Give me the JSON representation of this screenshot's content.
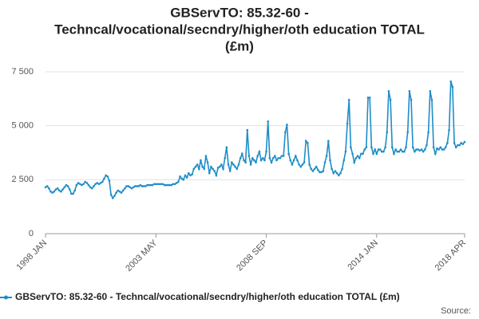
{
  "chart_data": {
    "type": "line",
    "title": [
      "GBServTO: 85.32-60 -",
      "Techncal/vocational/secndry/higher/oth education TOTAL",
      "(£m)"
    ],
    "source": "Source:",
    "categories": [
      "1998 JAN",
      null,
      null,
      null,
      null,
      null,
      null,
      null,
      null,
      null,
      null,
      null,
      null,
      null,
      null,
      null,
      null,
      null,
      null,
      null,
      null,
      null,
      null,
      null,
      null,
      null,
      null,
      null,
      null,
      null,
      null,
      null,
      null,
      null,
      null,
      null,
      null,
      null,
      null,
      null,
      null,
      null,
      null,
      null,
      null,
      null,
      null,
      null,
      null,
      null,
      null,
      null,
      null,
      null,
      null,
      null,
      null,
      null,
      null,
      null,
      null,
      null,
      null,
      null,
      "2003 MAY",
      null,
      null,
      null,
      null,
      null,
      null,
      null,
      null,
      null,
      null,
      null,
      null,
      null,
      null,
      null,
      null,
      null,
      null,
      null,
      null,
      null,
      null,
      null,
      null,
      null,
      null,
      null,
      null,
      null,
      null,
      null,
      null,
      null,
      null,
      null,
      null,
      null,
      null,
      null,
      null,
      null,
      null,
      null,
      null,
      null,
      null,
      null,
      null,
      null,
      null,
      null,
      null,
      null,
      null,
      null,
      null,
      null,
      null,
      null,
      null,
      null,
      null,
      null,
      "2008 SEP",
      null,
      null,
      null,
      null,
      null,
      null,
      null,
      null,
      null,
      null,
      null,
      null,
      null,
      null,
      null,
      null,
      null,
      null,
      null,
      null,
      null,
      null,
      null,
      null,
      null,
      null,
      null,
      null,
      null,
      null,
      null,
      null,
      null,
      null,
      null,
      null,
      null,
      null,
      null,
      null,
      null,
      null,
      null,
      null,
      null,
      null,
      null,
      null,
      null,
      null,
      null,
      null,
      null,
      null,
      null,
      null,
      null,
      null,
      null,
      null,
      null,
      null,
      null,
      "2014 JAN",
      null,
      null,
      null,
      null,
      null,
      null,
      null,
      null,
      null,
      null,
      null,
      null,
      null,
      null,
      null,
      null,
      null,
      null,
      null,
      null,
      null,
      null,
      null,
      null,
      null,
      null,
      null,
      null,
      null,
      null,
      null,
      null,
      null,
      null,
      null,
      null,
      null,
      null,
      null,
      null,
      null,
      null,
      null,
      null,
      null,
      null,
      null,
      null,
      null,
      null,
      "2018 APR"
    ],
    "series": [
      {
        "name": "GBServTO: 85.32-60 - Techncal/vocational/secndry/higher/oth education TOTAL (£m)",
        "color": "#1f8dc8",
        "values": [
          2150,
          2200,
          2100,
          1950,
          1900,
          1950,
          2050,
          2100,
          2000,
          1950,
          2050,
          2150,
          2250,
          2200,
          2050,
          1850,
          1850,
          2000,
          2250,
          2350,
          2300,
          2250,
          2300,
          2400,
          2350,
          2250,
          2150,
          2100,
          2200,
          2300,
          2350,
          2300,
          2350,
          2400,
          2550,
          2700,
          2650,
          2450,
          1800,
          1650,
          1750,
          1900,
          2000,
          1950,
          1900,
          2000,
          2100,
          2200,
          2200,
          2150,
          2100,
          2150,
          2200,
          2200,
          2200,
          2250,
          2200,
          2200,
          2200,
          2250,
          2250,
          2250,
          2250,
          2300,
          2300,
          2300,
          2300,
          2300,
          2300,
          2250,
          2250,
          2250,
          2250,
          2250,
          2300,
          2300,
          2350,
          2400,
          2650,
          2550,
          2500,
          2700,
          2600,
          2800,
          2700,
          2750,
          3000,
          3100,
          3200,
          3000,
          3400,
          3100,
          3000,
          3600,
          3300,
          2800,
          3100,
          3000,
          2900,
          2700,
          3050,
          3100,
          3200,
          3000,
          3500,
          4000,
          3200,
          2900,
          3300,
          3200,
          3100,
          3000,
          3200,
          3500,
          3700,
          3400,
          3300,
          4800,
          3600,
          3200,
          3500,
          3400,
          3300,
          3600,
          3800,
          3400,
          3500,
          3400,
          3800,
          5200,
          3500,
          3300,
          3500,
          3600,
          3400,
          3500,
          3500,
          3600,
          3600,
          4700,
          5050,
          3700,
          3400,
          3200,
          3400,
          3600,
          3400,
          3200,
          3100,
          3200,
          3300,
          4300,
          4200,
          3200,
          3000,
          2900,
          3000,
          3100,
          2950,
          2850,
          2850,
          2900,
          3300,
          3600,
          4300,
          3400,
          3000,
          2800,
          2900,
          2800,
          2700,
          2800,
          3000,
          3400,
          3800,
          5100,
          6200,
          4000,
          3700,
          3300,
          3500,
          3600,
          3500,
          3700,
          3700,
          3900,
          4000,
          6300,
          6300,
          4000,
          3700,
          3900,
          3700,
          3900,
          3900,
          3800,
          3800,
          4000,
          4700,
          6600,
          6200,
          4000,
          3700,
          3900,
          3800,
          3800,
          3900,
          3800,
          3800,
          4000,
          4700,
          6600,
          6200,
          4000,
          3800,
          3900,
          3900,
          3850,
          3900,
          3800,
          3900,
          4100,
          4700,
          6600,
          6200,
          4000,
          3700,
          3950,
          3900,
          4000,
          3900,
          3900,
          4000,
          4200,
          4800,
          7050,
          6800,
          4200,
          4000,
          4100,
          4100,
          4200,
          4150,
          4250
        ]
      }
    ],
    "ylim": [
      0,
      7500
    ],
    "yticks": [
      0,
      {
        "value": 2500,
        "label": "2 500"
      },
      {
        "value": 5000,
        "label": "5 000"
      },
      {
        "value": 7500,
        "label": "7 500"
      }
    ],
    "grid": true,
    "legend": "bottom"
  }
}
